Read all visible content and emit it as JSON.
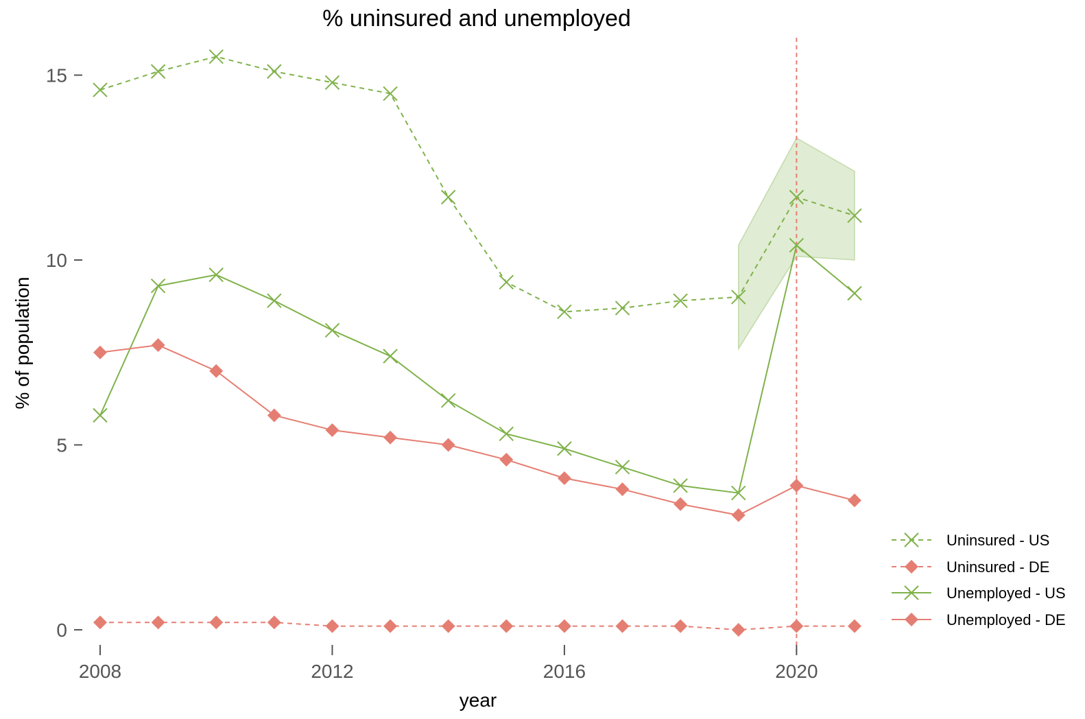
{
  "chart_data": {
    "type": "line",
    "title": "% uninsured and unemployed",
    "xlabel": "year",
    "ylabel": "% of population",
    "x": [
      2008,
      2009,
      2010,
      2011,
      2012,
      2013,
      2014,
      2015,
      2016,
      2017,
      2018,
      2019,
      2020,
      2021
    ],
    "xlim": [
      2008,
      2021
    ],
    "ylim": [
      0,
      15.5
    ],
    "xticks": [
      2008,
      2012,
      2016,
      2020
    ],
    "yticks": [
      0,
      5,
      10,
      15
    ],
    "grid": false,
    "legend_position": "right",
    "vline": {
      "x": 2020,
      "color": "#e57e72",
      "style": "dashed"
    },
    "band": {
      "series": "Uninsured - US",
      "x": [
        2019,
        2020,
        2021
      ],
      "lower": [
        7.6,
        10.1,
        10.0
      ],
      "upper": [
        10.4,
        13.3,
        12.4
      ],
      "color": "#a5c882"
    },
    "series": [
      {
        "name": "Uninsured - US",
        "color": "#7fb24a",
        "dash": true,
        "marker": "x",
        "values": [
          14.6,
          15.1,
          15.5,
          15.1,
          14.8,
          14.5,
          11.7,
          9.4,
          8.6,
          8.7,
          8.9,
          9.0,
          11.7,
          11.2
        ]
      },
      {
        "name": "Uninsured - DE",
        "color": "#e57e72",
        "dash": true,
        "marker": "diamond",
        "values": [
          0.2,
          0.2,
          0.2,
          0.2,
          0.1,
          0.1,
          0.1,
          0.1,
          0.1,
          0.1,
          0.1,
          0.0,
          0.1,
          0.1
        ]
      },
      {
        "name": "Unemployed - US",
        "color": "#7fb24a",
        "dash": false,
        "marker": "x",
        "values": [
          5.8,
          9.3,
          9.6,
          8.9,
          8.1,
          7.4,
          6.2,
          5.3,
          4.9,
          4.4,
          3.9,
          3.7,
          10.4,
          9.1
        ]
      },
      {
        "name": "Unemployed - DE",
        "color": "#e57e72",
        "dash": false,
        "marker": "diamond",
        "values": [
          7.5,
          7.7,
          7.0,
          5.8,
          5.4,
          5.2,
          5.0,
          4.6,
          4.1,
          3.8,
          3.4,
          3.1,
          3.9,
          3.5
        ]
      }
    ]
  }
}
